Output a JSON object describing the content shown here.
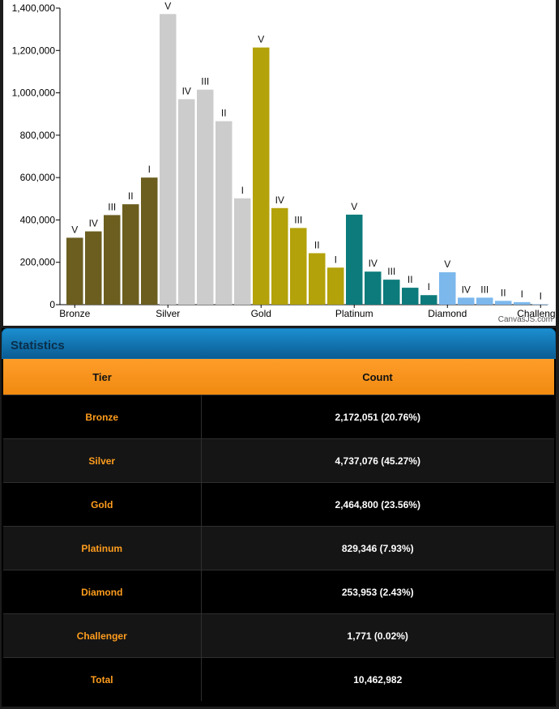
{
  "chart_data": {
    "type": "bar",
    "credit": "CanvasJS.com",
    "ylim": [
      0,
      1400000
    ],
    "y_ticks": [
      "0",
      "200,000",
      "400,000",
      "600,000",
      "800,000",
      "1,000,000",
      "1,200,000",
      "1,400,000"
    ],
    "x_labels": [
      "Bronze",
      "Silver",
      "Gold",
      "Platinum",
      "Diamond",
      "Challenger"
    ],
    "bars": [
      {
        "label": "V",
        "value": 316000,
        "color": "#6b5e1f"
      },
      {
        "label": "IV",
        "value": 346000,
        "color": "#6b5e1f"
      },
      {
        "label": "III",
        "value": 423000,
        "color": "#6b5e1f"
      },
      {
        "label": "II",
        "value": 474000,
        "color": "#6b5e1f"
      },
      {
        "label": "I",
        "value": 600000,
        "color": "#6b5e1f"
      },
      {
        "label": "V",
        "value": 1372000,
        "color": "#cccccc"
      },
      {
        "label": "IV",
        "value": 970000,
        "color": "#cccccc"
      },
      {
        "label": "III",
        "value": 1015000,
        "color": "#cccccc"
      },
      {
        "label": "II",
        "value": 866000,
        "color": "#cccccc"
      },
      {
        "label": "I",
        "value": 502000,
        "color": "#cccccc"
      },
      {
        "label": "V",
        "value": 1214000,
        "color": "#b3a20a"
      },
      {
        "label": "IV",
        "value": 456000,
        "color": "#b3a20a"
      },
      {
        "label": "III",
        "value": 362000,
        "color": "#b3a20a"
      },
      {
        "label": "II",
        "value": 243000,
        "color": "#b3a20a"
      },
      {
        "label": "I",
        "value": 175000,
        "color": "#b3a20a"
      },
      {
        "label": "V",
        "value": 425000,
        "color": "#0d7b7b"
      },
      {
        "label": "IV",
        "value": 156000,
        "color": "#0d7b7b"
      },
      {
        "label": "III",
        "value": 118000,
        "color": "#0d7b7b"
      },
      {
        "label": "II",
        "value": 80000,
        "color": "#0d7b7b"
      },
      {
        "label": "I",
        "value": 45000,
        "color": "#0d7b7b"
      },
      {
        "label": "V",
        "value": 153000,
        "color": "#7cb8ec"
      },
      {
        "label": "IV",
        "value": 33000,
        "color": "#7cb8ec"
      },
      {
        "label": "III",
        "value": 33000,
        "color": "#7cb8ec"
      },
      {
        "label": "II",
        "value": 18000,
        "color": "#7cb8ec"
      },
      {
        "label": "I",
        "value": 12000,
        "color": "#7cb8ec"
      },
      {
        "label": "I",
        "value": 1771,
        "color": "#7cb8ec"
      }
    ]
  },
  "statistics": {
    "title": "Statistics",
    "columns": [
      "Tier",
      "Count"
    ],
    "rows": [
      {
        "tier": "Bronze",
        "count": "2,172,051 (20.76%)"
      },
      {
        "tier": "Silver",
        "count": "4,737,076 (45.27%)"
      },
      {
        "tier": "Gold",
        "count": "2,464,800 (23.56%)"
      },
      {
        "tier": "Platinum",
        "count": "829,346 (7.93%)"
      },
      {
        "tier": "Diamond",
        "count": "253,953 (2.43%)"
      },
      {
        "tier": "Challenger",
        "count": "1,771 (0.02%)"
      },
      {
        "tier": "Total",
        "count": "10,462,982"
      }
    ]
  }
}
